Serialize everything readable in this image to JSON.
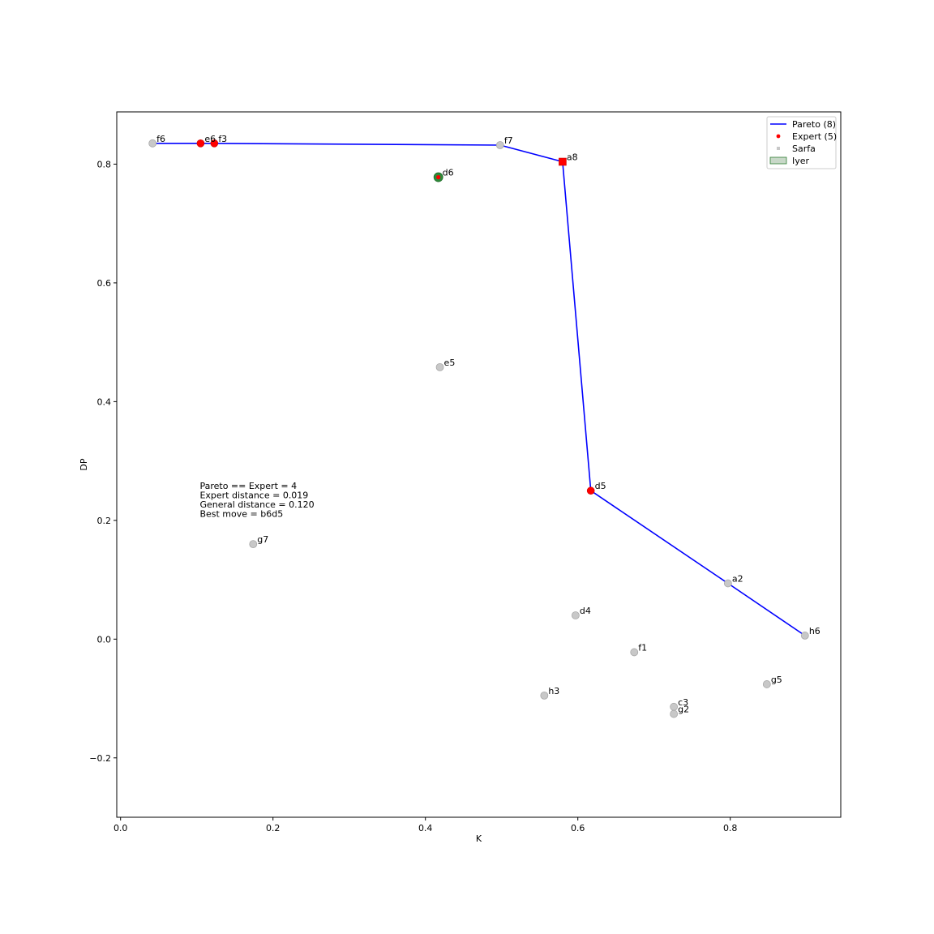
{
  "chart_data": {
    "type": "scatter",
    "title": "",
    "xlabel": "K",
    "ylabel": "DP",
    "xlim": [
      -0.005,
      0.945
    ],
    "ylim": [
      -0.3,
      0.888
    ],
    "xticks": [
      {
        "value": 0.0,
        "label": "0.0"
      },
      {
        "value": 0.2,
        "label": "0.2"
      },
      {
        "value": 0.4,
        "label": "0.4"
      },
      {
        "value": 0.6,
        "label": "0.6"
      },
      {
        "value": 0.8,
        "label": "0.8"
      }
    ],
    "yticks": [
      {
        "value": -0.2,
        "label": "−0.2"
      },
      {
        "value": 0.0,
        "label": "0.0"
      },
      {
        "value": 0.2,
        "label": "0.2"
      },
      {
        "value": 0.4,
        "label": "0.4"
      },
      {
        "value": 0.6,
        "label": "0.6"
      },
      {
        "value": 0.8,
        "label": "0.8"
      }
    ],
    "grid": false,
    "legend_position": "top-right",
    "legend": [
      {
        "label": "Pareto (8)",
        "kind": "line",
        "color": "#0000ff"
      },
      {
        "label": "Expert (5)",
        "kind": "dot",
        "color": "#ff0000"
      },
      {
        "label": "Sarfa",
        "kind": "square",
        "color": "#c8c8c8"
      },
      {
        "label": "Iyer",
        "kind": "patch",
        "color": "#c8d8c8",
        "edge": "#2e7d32"
      }
    ],
    "pareto_line": {
      "color": "#0000ff",
      "points": [
        {
          "x": 0.042,
          "y": 0.835
        },
        {
          "x": 0.105,
          "y": 0.835
        },
        {
          "x": 0.123,
          "y": 0.835
        },
        {
          "x": 0.498,
          "y": 0.832
        },
        {
          "x": 0.58,
          "y": 0.804
        },
        {
          "x": 0.617,
          "y": 0.25
        },
        {
          "x": 0.797,
          "y": 0.094
        },
        {
          "x": 0.898,
          "y": 0.006
        }
      ]
    },
    "points": [
      {
        "label": "f6",
        "x": 0.042,
        "y": 0.835,
        "kind": "gray"
      },
      {
        "label": "e6",
        "x": 0.105,
        "y": 0.835,
        "kind": "red"
      },
      {
        "label": "f3",
        "x": 0.123,
        "y": 0.835,
        "kind": "red"
      },
      {
        "label": "f7",
        "x": 0.498,
        "y": 0.832,
        "kind": "gray"
      },
      {
        "label": "a8",
        "x": 0.58,
        "y": 0.804,
        "kind": "red-square"
      },
      {
        "label": "d6",
        "x": 0.417,
        "y": 0.778,
        "kind": "green-red"
      },
      {
        "label": "e5",
        "x": 0.419,
        "y": 0.458,
        "kind": "gray"
      },
      {
        "label": "d5",
        "x": 0.617,
        "y": 0.25,
        "kind": "red"
      },
      {
        "label": "g7",
        "x": 0.174,
        "y": 0.16,
        "kind": "gray"
      },
      {
        "label": "a2",
        "x": 0.797,
        "y": 0.094,
        "kind": "gray"
      },
      {
        "label": "d4",
        "x": 0.597,
        "y": 0.04,
        "kind": "gray"
      },
      {
        "label": "h6",
        "x": 0.898,
        "y": 0.006,
        "kind": "gray"
      },
      {
        "label": "f1",
        "x": 0.674,
        "y": -0.022,
        "kind": "gray"
      },
      {
        "label": "g5",
        "x": 0.848,
        "y": -0.076,
        "kind": "gray"
      },
      {
        "label": "h3",
        "x": 0.556,
        "y": -0.095,
        "kind": "gray"
      },
      {
        "label": "c3",
        "x": 0.726,
        "y": -0.114,
        "kind": "gray"
      },
      {
        "label": "g2",
        "x": 0.726,
        "y": -0.126,
        "kind": "gray"
      }
    ],
    "annotation": [
      "Pareto == Expert = 4",
      "Expert distance = 0.019",
      "General distance = 0.120",
      "Best move = b6d5"
    ],
    "annotation_anchor": {
      "x": 0.104,
      "y": 0.25
    }
  }
}
